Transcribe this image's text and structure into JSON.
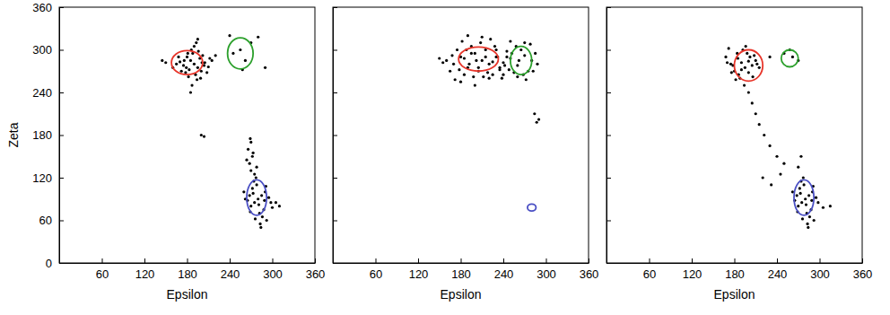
{
  "chart_data": [
    {
      "type": "scatter",
      "x_label": "Epsilon",
      "y_label": "Zeta",
      "color": "#000000",
      "marker": "dot",
      "xlim": [
        0,
        360
      ],
      "ylim": [
        0,
        360
      ],
      "xticks": [
        60,
        120,
        180,
        240,
        300,
        360
      ],
      "yticks": [
        0,
        60,
        120,
        180,
        240,
        300,
        360
      ],
      "x": [
        190,
        185,
        195,
        180,
        200,
        175,
        205,
        170,
        210,
        188,
        192,
        183,
        198,
        178,
        202,
        165,
        215,
        160,
        186,
        194,
        190,
        182,
        196,
        176,
        204,
        172,
        208,
        168,
        212,
        150,
        187,
        193,
        181,
        199,
        185,
        195,
        179,
        201,
        145,
        220,
        280,
        275,
        285,
        270,
        290,
        265,
        295,
        272,
        288,
        282,
        278,
        286,
        274,
        292,
        268,
        298,
        260,
        300,
        283,
        277,
        281,
        273,
        289,
        269,
        291,
        276,
        284,
        262,
        305,
        310,
        270,
        268,
        272,
        266,
        275,
        270,
        264,
        278,
        273,
        269,
        200,
        204,
        255,
        262,
        270,
        280,
        245,
        290,
        258,
        240
      ],
      "y": [
        280,
        285,
        275,
        290,
        270,
        278,
        282,
        283,
        276,
        295,
        265,
        272,
        288,
        268,
        292,
        280,
        285,
        275,
        300,
        258,
        305,
        262,
        298,
        285,
        278,
        270,
        268,
        290,
        288,
        282,
        250,
        310,
        295,
        260,
        240,
        315,
        275,
        282,
        285,
        292,
        90,
        85,
        95,
        80,
        100,
        88,
        92,
        105,
        75,
        70,
        110,
        65,
        115,
        60,
        95,
        85,
        100,
        78,
        55,
        120,
        82,
        98,
        88,
        72,
        108,
        62,
        50,
        90,
        85,
        80,
        130,
        140,
        150,
        160,
        125,
        170,
        145,
        135,
        155,
        175,
        180,
        178,
        300,
        285,
        310,
        318,
        295,
        275,
        272,
        320
      ],
      "ellipses": [
        {
          "color": "#e8352a",
          "cx": 180,
          "cy": 282,
          "rx": 22,
          "ry": 17
        },
        {
          "color": "#2ca02c",
          "cx": 255,
          "cy": 295,
          "rx": 18,
          "ry": 22
        },
        {
          "color": "#4a4fc4",
          "cx": 278,
          "cy": 92,
          "rx": 14,
          "ry": 25
        }
      ]
    },
    {
      "type": "scatter",
      "x_label": "Epsilon",
      "color": "#000000",
      "marker": "dot",
      "tick_labels": "x",
      "xlim": [
        0,
        360
      ],
      "ylim": [
        0,
        360
      ],
      "xticks": [
        60,
        120,
        180,
        240,
        300,
        360
      ],
      "yticks": [
        0,
        60,
        120,
        180,
        240,
        300,
        360
      ],
      "x": [
        160,
        170,
        180,
        190,
        200,
        210,
        220,
        230,
        240,
        250,
        260,
        270,
        280,
        165,
        175,
        185,
        195,
        205,
        215,
        225,
        235,
        245,
        255,
        265,
        275,
        285,
        155,
        168,
        178,
        188,
        198,
        208,
        218,
        228,
        238,
        248,
        258,
        268,
        278,
        288,
        172,
        182,
        192,
        202,
        212,
        222,
        232,
        242,
        252,
        262,
        272,
        282,
        185,
        195,
        205,
        215,
        225,
        235,
        200,
        210,
        190,
        180,
        220,
        250,
        260,
        270,
        245,
        230,
        240,
        150,
        284,
        287,
        290
      ],
      "y": [
        285,
        280,
        290,
        275,
        295,
        285,
        280,
        290,
        282,
        288,
        278,
        292,
        285,
        270,
        300,
        265,
        305,
        270,
        300,
        265,
        275,
        298,
        268,
        300,
        270,
        295,
        282,
        292,
        272,
        300,
        262,
        310,
        268,
        305,
        260,
        272,
        305,
        265,
        308,
        280,
        258,
        312,
        280,
        285,
        262,
        315,
        290,
        278,
        295,
        285,
        258,
        270,
        288,
        295,
        275,
        290,
        283,
        272,
        250,
        318,
        320,
        255,
        260,
        312,
        262,
        310,
        290,
        300,
        265,
        288,
        210,
        198,
        202
      ],
      "ellipses": [
        {
          "color": "#e8352a",
          "cx": 205,
          "cy": 287,
          "rx": 28,
          "ry": 17
        },
        {
          "color": "#2ca02c",
          "cx": 265,
          "cy": 285,
          "rx": 15,
          "ry": 20
        },
        {
          "color": "#4a4fc4",
          "cx": 280,
          "cy": 78,
          "rx": 6,
          "ry": 5
        }
      ]
    },
    {
      "type": "scatter",
      "x_label": "Epsilon",
      "color": "#000000",
      "marker": "dot",
      "tick_labels": "x",
      "xlim": [
        0,
        360
      ],
      "ylim": [
        0,
        360
      ],
      "xticks": [
        60,
        120,
        180,
        240,
        300,
        360
      ],
      "yticks": [
        0,
        60,
        120,
        180,
        240,
        300,
        360
      ],
      "x": [
        195,
        190,
        200,
        185,
        205,
        180,
        210,
        175,
        198,
        188,
        192,
        186,
        202,
        178,
        206,
        170,
        215,
        168,
        194,
        196,
        190,
        184,
        200,
        182,
        208,
        176,
        212,
        172,
        230,
        250,
        200,
        205,
        210,
        215,
        222,
        230,
        240,
        250,
        220,
        232,
        245,
        262,
        270,
        258,
        280,
        275,
        285,
        270,
        290,
        265,
        295,
        272,
        288,
        282,
        278,
        286,
        274,
        292,
        268,
        298,
        262,
        305,
        283,
        277,
        281,
        273,
        289,
        269,
        291,
        276,
        284,
        315,
        270,
        274
      ],
      "y": [
        275,
        282,
        268,
        288,
        278,
        270,
        285,
        280,
        295,
        260,
        300,
        265,
        290,
        278,
        262,
        282,
        275,
        290,
        250,
        305,
        272,
        295,
        284,
        258,
        292,
        268,
        280,
        302,
        290,
        295,
        240,
        225,
        210,
        195,
        180,
        165,
        150,
        140,
        120,
        110,
        125,
        290,
        285,
        300,
        90,
        85,
        95,
        80,
        100,
        88,
        92,
        105,
        75,
        70,
        110,
        65,
        115,
        60,
        95,
        85,
        100,
        78,
        55,
        120,
        82,
        98,
        88,
        72,
        108,
        62,
        50,
        80,
        135,
        150
      ],
      "ellipses": [
        {
          "color": "#e8352a",
          "cx": 200,
          "cy": 278,
          "rx": 20,
          "ry": 22
        },
        {
          "color": "#2ca02c",
          "cx": 258,
          "cy": 288,
          "rx": 12,
          "ry": 12
        },
        {
          "color": "#4a4fc4",
          "cx": 278,
          "cy": 92,
          "rx": 14,
          "ry": 25
        }
      ]
    }
  ]
}
